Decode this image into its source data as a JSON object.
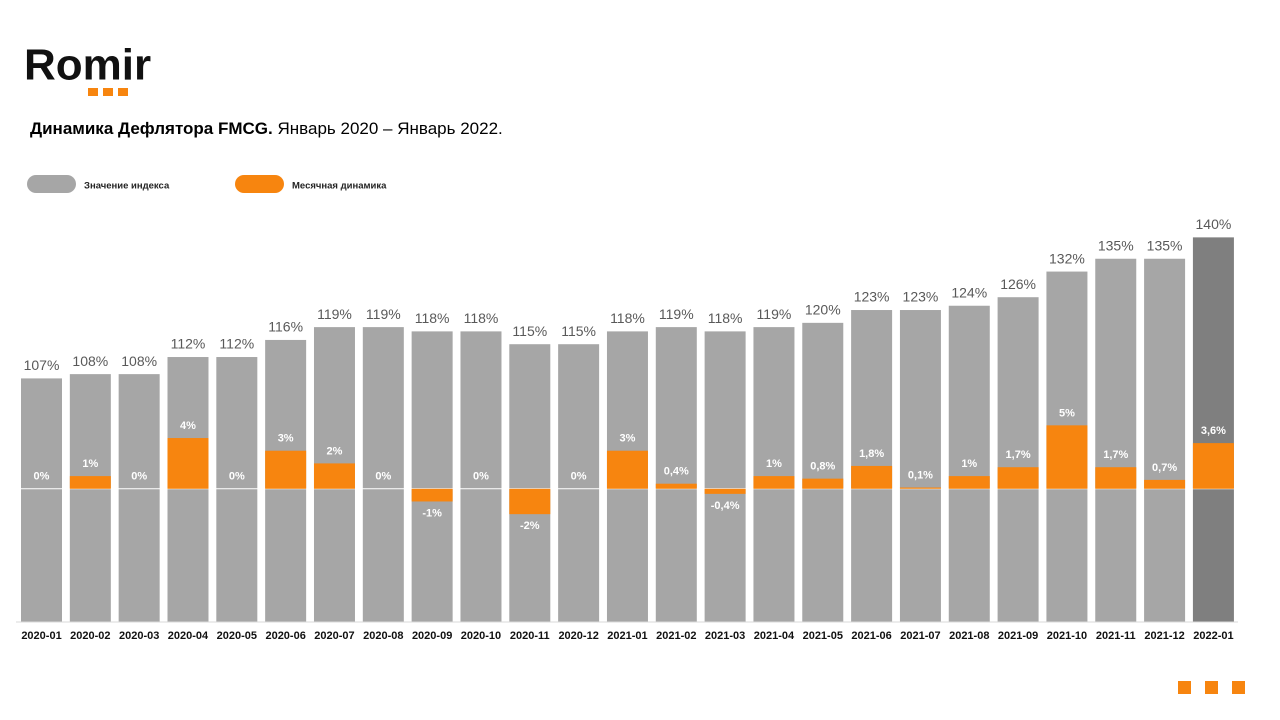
{
  "logo": "Romir",
  "chart_data": {
    "type": "bar",
    "title": "Динамика Дефлятора FMCG.",
    "subtitle": "Январь 2020 – Январь 2022.",
    "categories": [
      "2020-01",
      "2020-02",
      "2020-03",
      "2020-04",
      "2020-05",
      "2020-06",
      "2020-07",
      "2020-08",
      "2020-09",
      "2020-10",
      "2020-11",
      "2020-12",
      "2021-01",
      "2021-02",
      "2021-03",
      "2021-04",
      "2021-05",
      "2021-06",
      "2021-07",
      "2021-08",
      "2021-09",
      "2021-10",
      "2021-11",
      "2021-12",
      "2022-01"
    ],
    "ylim": [
      50,
      145
    ],
    "y2lim": [
      -10.5,
      21.5
    ],
    "series": [
      {
        "name": "Значение индекса",
        "color": "#a6a6a6",
        "colors": [
          "#a6a6a6",
          "#a6a6a6",
          "#a6a6a6",
          "#a6a6a6",
          "#a6a6a6",
          "#a6a6a6",
          "#a6a6a6",
          "#a6a6a6",
          "#a6a6a6",
          "#a6a6a6",
          "#a6a6a6",
          "#a6a6a6",
          "#a6a6a6",
          "#a6a6a6",
          "#a6a6a6",
          "#a6a6a6",
          "#a6a6a6",
          "#a6a6a6",
          "#a6a6a6",
          "#a6a6a6",
          "#a6a6a6",
          "#a6a6a6",
          "#a6a6a6",
          "#a6a6a6",
          "#7f7f7f"
        ],
        "values": [
          107,
          108,
          108,
          112,
          112,
          116,
          119,
          119,
          118,
          118,
          115,
          115,
          118,
          119,
          118,
          119,
          120,
          123,
          123,
          124,
          126,
          132,
          135,
          135,
          140
        ],
        "value_labels": [
          "107%",
          "108%",
          "108%",
          "112%",
          "112%",
          "116%",
          "119%",
          "119%",
          "118%",
          "118%",
          "115%",
          "115%",
          "118%",
          "119%",
          "118%",
          "119%",
          "120%",
          "123%",
          "123%",
          "124%",
          "126%",
          "132%",
          "135%",
          "135%",
          "140%"
        ]
      },
      {
        "name": "Месячная динамика",
        "color": "#f7850f",
        "axis": "y2",
        "values": [
          0,
          1,
          0,
          4,
          0,
          3,
          2,
          0,
          -1,
          0,
          -2,
          0,
          3,
          0.4,
          -0.4,
          1,
          0.8,
          1.8,
          0.1,
          1,
          1.7,
          5,
          1.7,
          0.7,
          3.6
        ],
        "value_labels": [
          "0%",
          "1%",
          "0%",
          "4%",
          "0%",
          "3%",
          "2%",
          "0%",
          "-1%",
          "0%",
          "-2%",
          "0%",
          "3%",
          "0,4%",
          "-0,4%",
          "1%",
          "0,8%",
          "1,8%",
          "0,1%",
          "1%",
          "1,7%",
          "5%",
          "1,7%",
          "0,7%",
          "3,6%"
        ]
      }
    ]
  }
}
